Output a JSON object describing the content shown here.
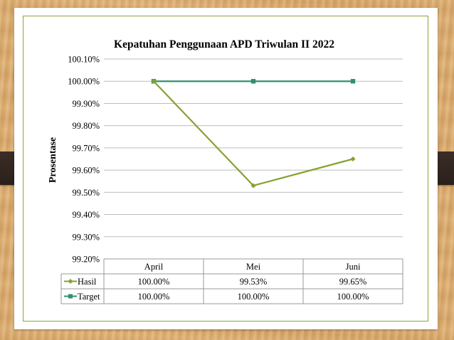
{
  "chart_data": {
    "type": "line",
    "title": "Kepatuhan Penggunaan APD Triwulan II 2022",
    "xlabel": "",
    "ylabel": "Prosentase",
    "categories": [
      "April",
      "Mei",
      "Juni"
    ],
    "ylim": [
      99.2,
      100.1
    ],
    "yticks": [
      100.1,
      100.0,
      99.9,
      99.8,
      99.7,
      99.6,
      99.5,
      99.4,
      99.3,
      99.2
    ],
    "ytick_labels": [
      "100.10%",
      "100.00%",
      "99.90%",
      "99.80%",
      "99.70%",
      "99.60%",
      "99.50%",
      "99.40%",
      "99.30%",
      "99.20%"
    ],
    "grid": true,
    "legend": "data-table",
    "series": [
      {
        "name": "Hasil",
        "color": "#84a230",
        "marker": "diamond",
        "values": [
          100.0,
          99.53,
          99.65
        ],
        "labels": [
          "100.00%",
          "99.53%",
          "99.65%"
        ]
      },
      {
        "name": "Target",
        "color": "#2f9070",
        "marker": "square",
        "values": [
          100.0,
          100.0,
          100.0
        ],
        "labels": [
          "100.00%",
          "100.00%",
          "100.00%"
        ]
      }
    ]
  }
}
